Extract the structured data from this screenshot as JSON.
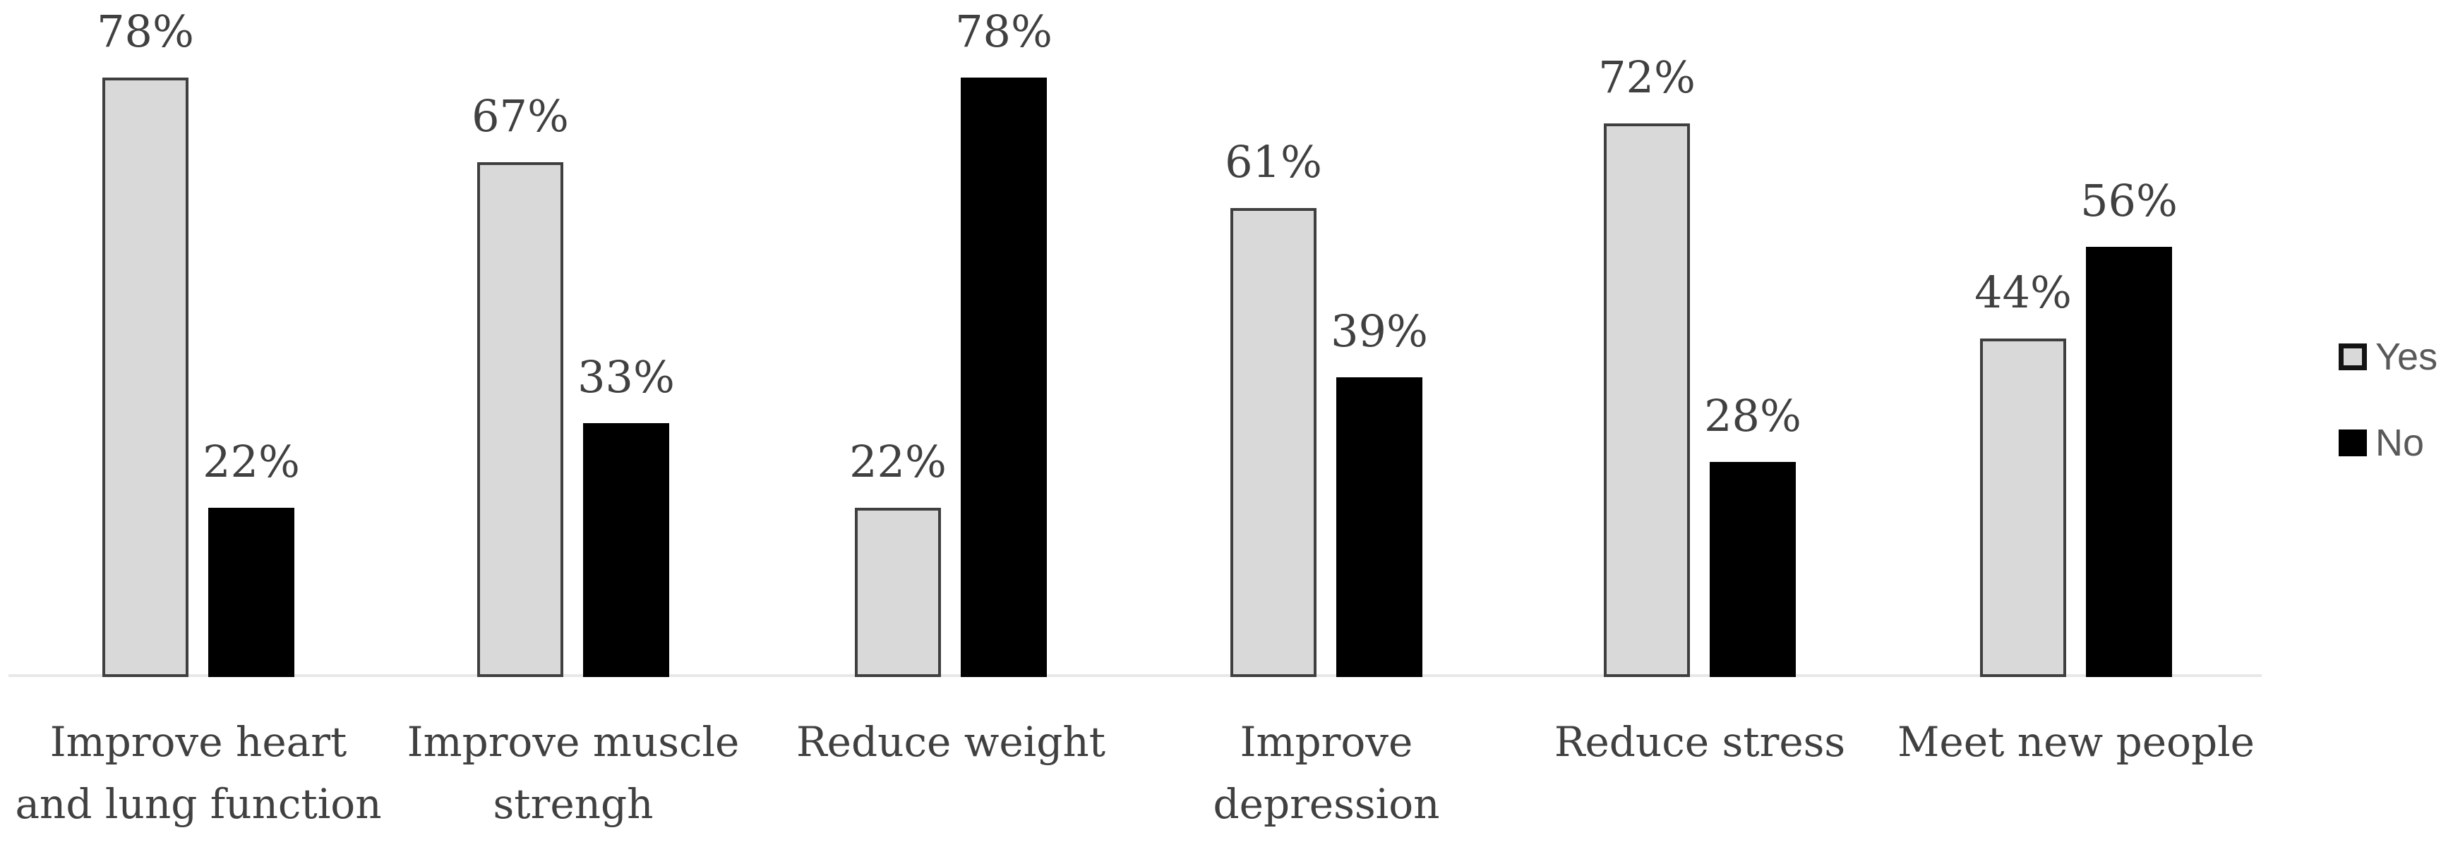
{
  "chart_data": {
    "type": "bar",
    "title": "",
    "xlabel": "",
    "ylabel": "",
    "categories": [
      "Improve heart and lung function",
      "Improve muscle strengh",
      "Reduce weight",
      "Improve depression",
      "Reduce stress",
      "Meet new people"
    ],
    "category_label_lines": [
      [
        "Improve heart",
        "and lung function"
      ],
      [
        "Improve muscle",
        "strengh"
      ],
      [
        "Reduce weight"
      ],
      [
        "Improve",
        "depression"
      ],
      [
        "Reduce stress"
      ],
      [
        "Meet new people"
      ]
    ],
    "series": [
      {
        "name": "Yes",
        "values": [
          78,
          67,
          22,
          61,
          72,
          44
        ],
        "color": "#d9d9d9",
        "border_color": "#3f3f3f"
      },
      {
        "name": "No",
        "values": [
          22,
          33,
          78,
          39,
          28,
          56
        ],
        "color": "#000000",
        "border_color": "#000000"
      }
    ],
    "value_labels": [
      [
        "78%",
        "67%",
        "22%",
        "61%",
        "72%",
        "44%"
      ],
      [
        "22%",
        "33%",
        "78%",
        "39%",
        "28%",
        "56%"
      ]
    ],
    "ylim": [
      0,
      100
    ],
    "gridlines": false,
    "y_axis_visible": false,
    "legend": {
      "position": "right",
      "entries": [
        "Yes",
        "No"
      ]
    }
  },
  "colors": {
    "value_label_text": "#404040",
    "category_label_text": "#404040",
    "legend_text": "#595959",
    "axis_line": "#e8e8e8",
    "background": "#ffffff",
    "yes_fill": "#d9d9d9",
    "no_fill": "#000000"
  }
}
